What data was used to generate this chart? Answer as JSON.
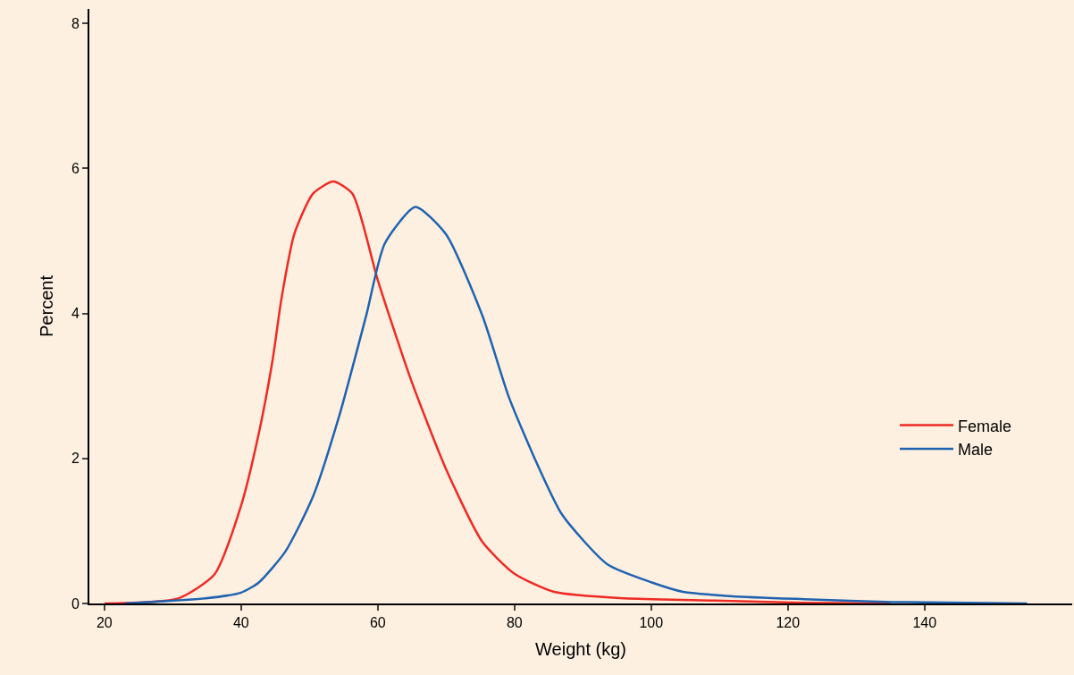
{
  "chart_data": {
    "type": "line",
    "xlabel": "Weight (kg)",
    "ylabel": "Percent",
    "xlim": [
      17.8,
      161.6
    ],
    "ylim": [
      0,
      8.2
    ],
    "xticks": [
      20,
      40,
      60,
      80,
      100,
      120,
      140
    ],
    "yticks": [
      0,
      2,
      4,
      6,
      8
    ],
    "grid": false,
    "legend": "right",
    "marker": "none",
    "line_style": "solid",
    "series": [
      {
        "name": "Female",
        "color": "#ee2a24",
        "x": [
          20,
          30.8,
          36.1,
          40,
          42.6,
          44.6,
          45.9,
          47.8,
          50.5,
          53.5,
          56.3,
          60,
          64.8,
          70,
          75.3,
          80,
          85.8,
          96.2,
          109.3,
          122,
          135
        ],
        "values": [
          0,
          0.07,
          0.4,
          1.35,
          2.35,
          3.35,
          4.2,
          5.1,
          5.65,
          5.82,
          5.65,
          4.46,
          3.1,
          1.85,
          0.85,
          0.41,
          0.16,
          0.07,
          0.04,
          0.01,
          0
        ]
      },
      {
        "name": "Male",
        "color": "#1f63b0",
        "x": [
          23,
          34.8,
          40,
          42.6,
          46.5,
          50.5,
          54.4,
          58.3,
          61,
          65.5,
          70,
          75.3,
          79.2,
          83.1,
          87,
          93.6,
          100.1,
          104.7,
          111.9,
          122.4,
          135.4,
          155
        ],
        "values": [
          0,
          0.07,
          0.15,
          0.29,
          0.72,
          1.47,
          2.6,
          3.97,
          4.96,
          5.47,
          5.09,
          3.97,
          2.84,
          1.97,
          1.22,
          0.54,
          0.29,
          0.16,
          0.1,
          0.06,
          0.02,
          0
        ]
      }
    ]
  }
}
